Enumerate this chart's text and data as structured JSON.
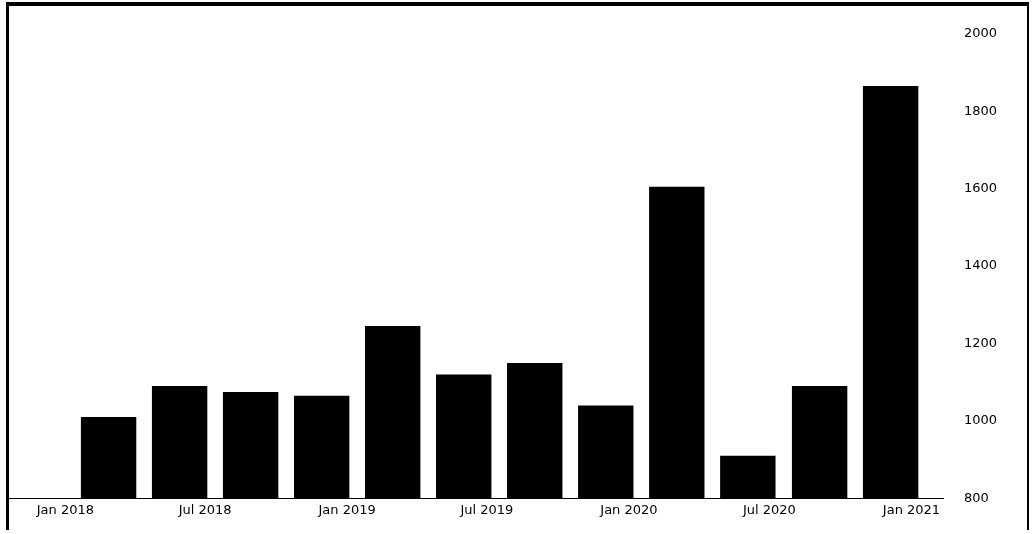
{
  "chart_data": {
    "type": "bar",
    "x": [
      "2018-02-26",
      "2018-05-29",
      "2018-08-29",
      "2018-11-29",
      "2019-03-01",
      "2019-06-01",
      "2019-09-01",
      "2019-12-02",
      "2020-03-03",
      "2020-06-03",
      "2020-09-04",
      "2020-12-05"
    ],
    "values": [
      1010,
      1090,
      1075,
      1065,
      1245,
      1120,
      1150,
      1040,
      1605,
      910,
      1090,
      1865
    ],
    "color": "#000000",
    "xlim": [
      "2017-10-20",
      "2021-02-12"
    ],
    "xticks": [
      {
        "value": "2018-01-01",
        "label": "Jan 2018"
      },
      {
        "value": "2018-07-01",
        "label": "Jul 2018"
      },
      {
        "value": "2019-01-01",
        "label": "Jan 2019"
      },
      {
        "value": "2019-07-01",
        "label": "Jul 2019"
      },
      {
        "value": "2020-01-01",
        "label": "Jan 2020"
      },
      {
        "value": "2020-07-01",
        "label": "Jul 2020"
      },
      {
        "value": "2021-01-01",
        "label": "Jan 2021"
      }
    ],
    "ylim": [
      800,
      2000
    ],
    "yticks": [
      800,
      1000,
      1200,
      1400,
      1600,
      1800,
      2000
    ],
    "grid": false,
    "legend": false
  }
}
